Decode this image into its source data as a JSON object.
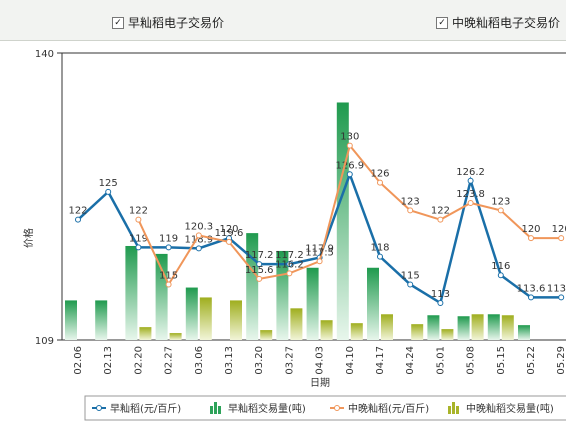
{
  "controls": [
    "早籼稻电子交易价",
    "中晚籼稻电子交易价"
  ],
  "chart_data": {
    "type": "line",
    "ylabel": "价格",
    "xlabel": "日期",
    "categories": [
      "02.06",
      "02.13",
      "02.20",
      "02.27",
      "03.06",
      "03.13",
      "03.20",
      "03.27",
      "04.03",
      "04.10",
      "04.17",
      "04.24",
      "05.01",
      "05.08",
      "05.15",
      "05.22",
      "05.29"
    ],
    "ylim": [
      109,
      140
    ],
    "yticks": [
      140,
      109
    ],
    "y2lim": [
      0,
      290
    ],
    "series": [
      {
        "name": "早籼稻(元/百斤)",
        "color": "#1a6fa8",
        "values": [
          122,
          125,
          119,
          119,
          118.9,
          120,
          117.2,
          117.2,
          117.9,
          126.9,
          118,
          115,
          113,
          126.2,
          116,
          113.6,
          113.6
        ]
      },
      {
        "name": "早籼稻交易量(吨)",
        "color": "#2ea35a",
        "type": "bar",
        "axis": "y2",
        "values": [
          40,
          40,
          95,
          87,
          53,
          null,
          108,
          90,
          73,
          240,
          73,
          null,
          25,
          24,
          26,
          15,
          null
        ]
      },
      {
        "name": "中晚籼稻(元/百斤)",
        "color": "#f0965a",
        "values": [
          null,
          null,
          122,
          115,
          120.3,
          119.6,
          115.6,
          116.2,
          117.5,
          130,
          126,
          123,
          122,
          123.8,
          123,
          120,
          120
        ]
      },
      {
        "name": "中晚籼稻交易量(吨)",
        "color": "#a9b42a",
        "type": "bar",
        "axis": "y2",
        "values": [
          null,
          null,
          13,
          7,
          43,
          40,
          10,
          32,
          20,
          17,
          26,
          16,
          11,
          26,
          25,
          null,
          null
        ]
      }
    ]
  }
}
